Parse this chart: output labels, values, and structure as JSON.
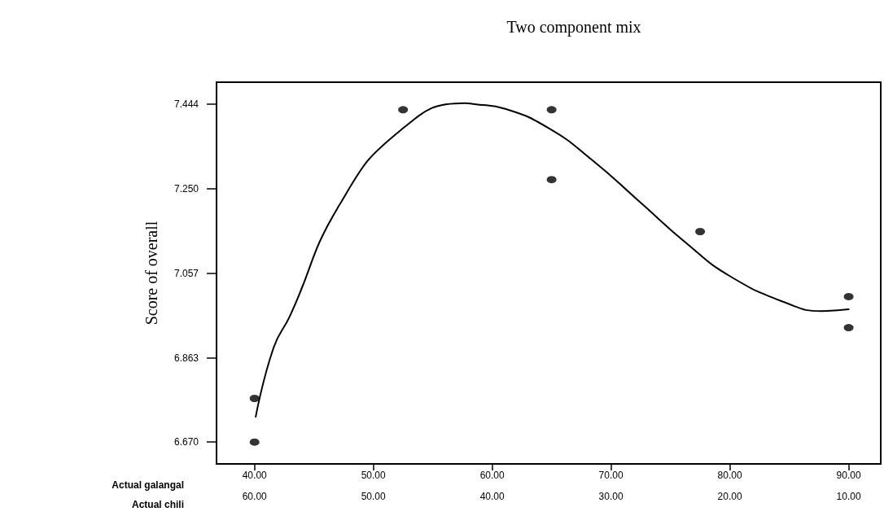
{
  "chart_data": {
    "type": "scatter",
    "title": "Two component mix",
    "xlabel": "Actual galangal",
    "ylabel": "Score of overall",
    "x2label": "Actual chili",
    "xlim": [
      36.8,
      92.7
    ],
    "xticks": [
      {
        "value": 40,
        "label": "40.00"
      },
      {
        "value": 50,
        "label": "50.00"
      },
      {
        "value": 60,
        "label": "60.00"
      },
      {
        "value": 70,
        "label": "70.00"
      },
      {
        "value": 80,
        "label": "80.00"
      },
      {
        "value": 90,
        "label": "90.00"
      }
    ],
    "x2lim": [
      63.2,
      7.3
    ],
    "x2ticks": [
      {
        "value": 60,
        "label": "60.00"
      },
      {
        "value": 50,
        "label": "50.00"
      },
      {
        "value": 40,
        "label": "40.00"
      },
      {
        "value": 30,
        "label": "30.00"
      },
      {
        "value": 20,
        "label": "20.00"
      },
      {
        "value": 10,
        "label": "10.00"
      }
    ],
    "ylim": [
      6.62,
      7.494
    ],
    "yticks": [
      {
        "value": 6.67,
        "label": "6.670"
      },
      {
        "value": 6.863,
        "label": "6.863"
      },
      {
        "value": 7.057,
        "label": "7.057"
      },
      {
        "value": 7.25,
        "label": "7.250"
      },
      {
        "value": 7.444,
        "label": "7.444"
      }
    ],
    "grid": false,
    "series": [
      {
        "color": "#000000",
        "marker": "circle",
        "x": [
          40,
          40,
          52.5,
          65,
          65,
          77.5,
          90,
          90
        ],
        "values": [
          6.77,
          6.67,
          7.431,
          7.431,
          7.271,
          7.152,
          7.003,
          6.932
        ]
      },
      {
        "type": "line",
        "color": "#000000",
        "marker": "none",
        "line_style": "solid",
        "x": [
          40.1,
          41.6,
          43.0,
          47.1,
          52.3,
          57.7,
          58.4,
          61.1,
          64.8,
          68.4,
          72.3,
          76.4,
          80.0,
          84.8,
          87.7,
          90.0
        ],
        "values": [
          6.728,
          6.886,
          6.96,
          7.211,
          7.384,
          7.446,
          7.444,
          7.433,
          7.388,
          7.316,
          7.223,
          7.124,
          7.05,
          6.988,
          6.97,
          6.974
        ]
      }
    ]
  }
}
